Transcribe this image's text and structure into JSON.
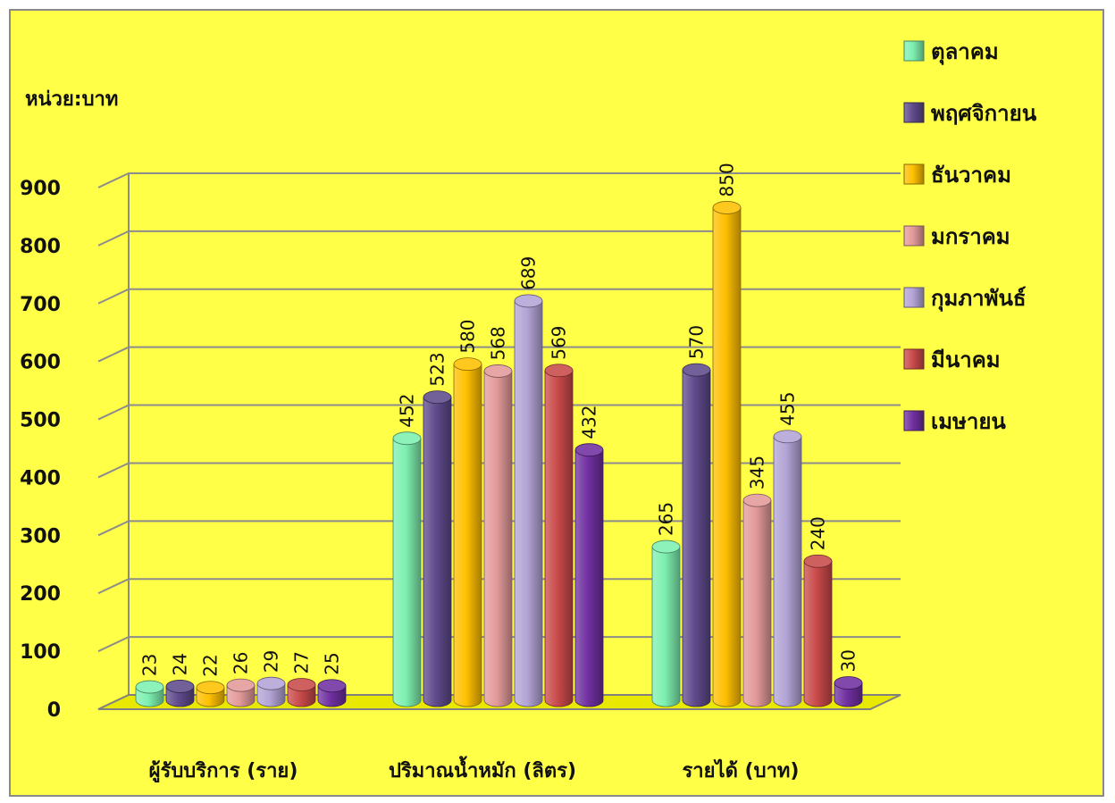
{
  "chart_data": {
    "type": "bar",
    "unit_label": "หน่วย:บาท",
    "categories": [
      "ผู้รับบริการ (ราย)",
      "ปริมาณน้ำหมัก (ลิตร)",
      "รายได้ (บาท)"
    ],
    "series": [
      {
        "name": "ตุลาคม",
        "color": "#7ef0b0",
        "values": [
          23,
          452,
          265
        ]
      },
      {
        "name": "พฤศจิกายน",
        "color": "#5f4a8b",
        "values": [
          24,
          523,
          570
        ]
      },
      {
        "name": "ธันวาคม",
        "color": "#ffc000",
        "values": [
          22,
          580,
          850
        ]
      },
      {
        "name": "มกราคม",
        "color": "#e39a9a",
        "values": [
          26,
          568,
          345
        ]
      },
      {
        "name": "กุมภาพันธ์",
        "color": "#b3a4d6",
        "values": [
          29,
          689,
          455
        ]
      },
      {
        "name": "มีนาคม",
        "color": "#c94a4a",
        "values": [
          27,
          569,
          240
        ]
      },
      {
        "name": "เมษายน",
        "color": "#7030a0",
        "values": [
          25,
          432,
          30
        ]
      }
    ],
    "ylim": [
      0,
      900
    ],
    "yticks": [
      "0",
      "100",
      "200",
      "300",
      "400",
      "500",
      "600",
      "700",
      "800",
      "900"
    ],
    "grid": true,
    "legend_position": "right"
  },
  "colors": {
    "background": "#ffff47",
    "gridline": "#8c8c8c",
    "axis": "#7f7f7f"
  }
}
